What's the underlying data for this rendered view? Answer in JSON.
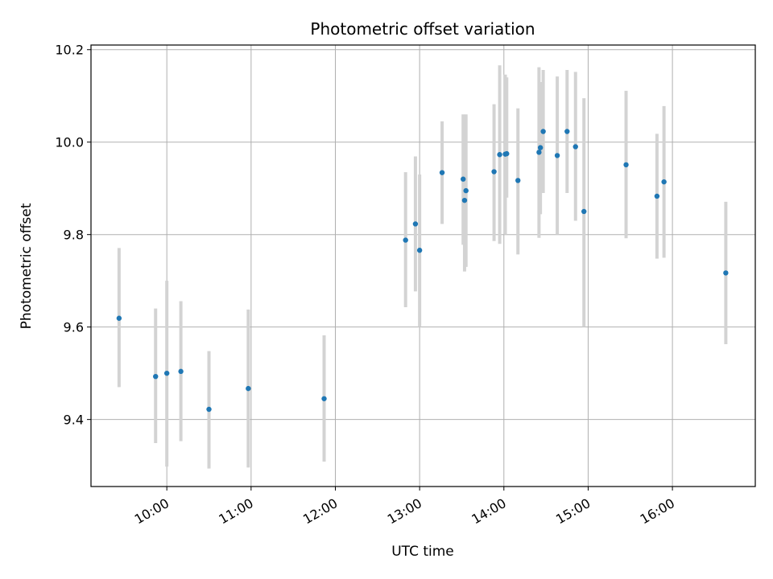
{
  "chart_data": {
    "type": "scatter",
    "title": "Photometric offset variation",
    "xlabel": "UTC time",
    "ylabel": "Photometric offset",
    "grid": true,
    "xlim": [
      "09:06",
      "16:59"
    ],
    "ylim": [
      9.255,
      10.21
    ],
    "x_ticks": [
      "10:00",
      "11:00",
      "12:00",
      "13:00",
      "14:00",
      "15:00",
      "16:00"
    ],
    "y_ticks": [
      9.4,
      9.6,
      9.8,
      10.0,
      10.2
    ],
    "y_tick_labels": [
      "9.4",
      "9.6",
      "9.8",
      "10.0",
      "10.2"
    ],
    "colors": {
      "point": "#1f77b4",
      "errorbar": "#d3d3d3",
      "grid": "#b0b0b0",
      "axes": "#000000"
    },
    "points": [
      {
        "x": "09:26",
        "y": 9.619,
        "yerr_low": 9.47,
        "yerr_high": 9.771
      },
      {
        "x": "09:52",
        "y": 9.493,
        "yerr_low": 9.349,
        "yerr_high": 9.64
      },
      {
        "x": "10:00",
        "y": 9.5,
        "yerr_low": 9.298,
        "yerr_high": 9.7
      },
      {
        "x": "10:10",
        "y": 9.504,
        "yerr_low": 9.353,
        "yerr_high": 9.656
      },
      {
        "x": "10:30",
        "y": 9.422,
        "yerr_low": 9.294,
        "yerr_high": 9.548
      },
      {
        "x": "10:58",
        "y": 9.467,
        "yerr_low": 9.296,
        "yerr_high": 9.638
      },
      {
        "x": "11:52",
        "y": 9.445,
        "yerr_low": 9.309,
        "yerr_high": 9.582
      },
      {
        "x": "12:50",
        "y": 9.788,
        "yerr_low": 9.643,
        "yerr_high": 9.935
      },
      {
        "x": "12:57",
        "y": 9.823,
        "yerr_low": 9.677,
        "yerr_high": 9.969
      },
      {
        "x": "13:00",
        "y": 9.766,
        "yerr_low": 9.6,
        "yerr_high": 9.93
      },
      {
        "x": "13:16",
        "y": 9.934,
        "yerr_low": 9.823,
        "yerr_high": 10.045
      },
      {
        "x": "13:31",
        "y": 9.92,
        "yerr_low": 9.778,
        "yerr_high": 10.06
      },
      {
        "x": "13:32",
        "y": 9.874,
        "yerr_low": 9.72,
        "yerr_high": 10.028
      },
      {
        "x": "13:33",
        "y": 9.895,
        "yerr_low": 9.73,
        "yerr_high": 10.06
      },
      {
        "x": "13:53",
        "y": 9.936,
        "yerr_low": 9.786,
        "yerr_high": 10.082
      },
      {
        "x": "13:57",
        "y": 9.973,
        "yerr_low": 9.78,
        "yerr_high": 10.166
      },
      {
        "x": "14:01",
        "y": 9.974,
        "yerr_low": 9.8,
        "yerr_high": 10.146
      },
      {
        "x": "14:02",
        "y": 9.975,
        "yerr_low": 9.88,
        "yerr_high": 10.14
      },
      {
        "x": "14:10",
        "y": 9.917,
        "yerr_low": 9.757,
        "yerr_high": 10.073
      },
      {
        "x": "14:25",
        "y": 9.978,
        "yerr_low": 9.793,
        "yerr_high": 10.162
      },
      {
        "x": "14:26",
        "y": 9.988,
        "yerr_low": 9.844,
        "yerr_high": 10.13
      },
      {
        "x": "14:28",
        "y": 10.023,
        "yerr_low": 9.89,
        "yerr_high": 10.156
      },
      {
        "x": "14:38",
        "y": 9.971,
        "yerr_low": 9.8,
        "yerr_high": 10.142
      },
      {
        "x": "14:45",
        "y": 10.023,
        "yerr_low": 9.89,
        "yerr_high": 10.156
      },
      {
        "x": "14:51",
        "y": 9.99,
        "yerr_low": 9.83,
        "yerr_high": 10.152
      },
      {
        "x": "14:57",
        "y": 9.85,
        "yerr_low": 9.6,
        "yerr_high": 10.095
      },
      {
        "x": "15:27",
        "y": 9.951,
        "yerr_low": 9.792,
        "yerr_high": 10.111
      },
      {
        "x": "15:49",
        "y": 9.883,
        "yerr_low": 9.748,
        "yerr_high": 10.018
      },
      {
        "x": "15:54",
        "y": 9.914,
        "yerr_low": 9.75,
        "yerr_high": 10.078
      },
      {
        "x": "16:38",
        "y": 9.717,
        "yerr_low": 9.563,
        "yerr_high": 9.871
      }
    ]
  }
}
